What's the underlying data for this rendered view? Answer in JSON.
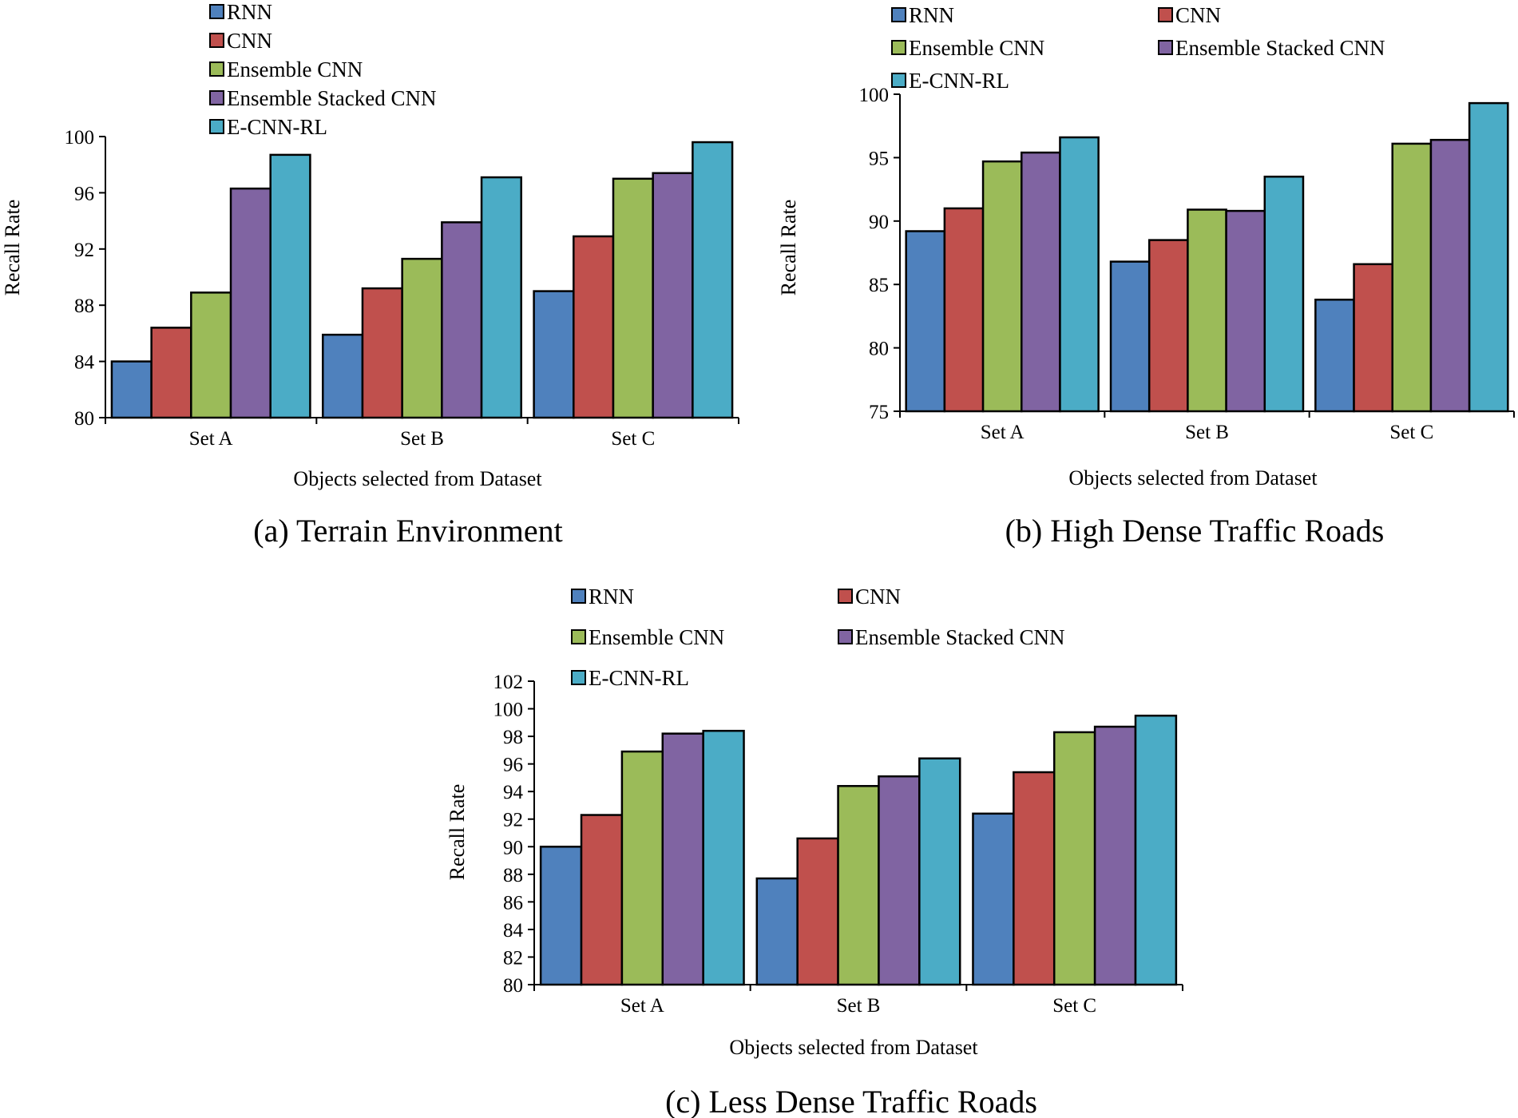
{
  "palette": [
    "#4f81bd",
    "#c0504d",
    "#9bbb59",
    "#8064a2",
    "#4bacc6"
  ],
  "charts": [
    {
      "caption": "(a) Terrain Environment",
      "chart_data": {
        "type": "bar",
        "categories": [
          "Set A",
          "Set B",
          "Set C"
        ],
        "series": [
          {
            "name": "RNN",
            "values": [
              84.0,
              85.9,
              89.0
            ]
          },
          {
            "name": "CNN",
            "values": [
              86.4,
              89.2,
              92.9
            ]
          },
          {
            "name": "Ensemble CNN",
            "values": [
              88.9,
              91.3,
              97.0
            ]
          },
          {
            "name": "Ensemble Stacked CNN",
            "values": [
              96.3,
              93.9,
              97.4
            ]
          },
          {
            "name": "E-CNN-RL",
            "values": [
              98.7,
              97.1,
              99.6
            ]
          }
        ],
        "title": "",
        "xlabel": "Objects selected from Dataset",
        "ylabel": "Recall Rate",
        "ylim": [
          80,
          100
        ],
        "yticks": [
          80,
          84,
          88,
          92,
          96,
          100
        ],
        "ytick_labels": [
          "80",
          "84",
          "88",
          "92",
          "96",
          "100"
        ],
        "grid": false,
        "legend_position": "top-left"
      }
    },
    {
      "caption": "(b) High Dense Traffic Roads",
      "chart_data": {
        "type": "bar",
        "categories": [
          "Set A",
          "Set B",
          "Set C"
        ],
        "series": [
          {
            "name": "RNN",
            "values": [
              89.2,
              86.8,
              83.8
            ]
          },
          {
            "name": "CNN",
            "values": [
              91.0,
              88.5,
              86.6
            ]
          },
          {
            "name": "Ensemble CNN",
            "values": [
              94.7,
              90.9,
              96.1
            ]
          },
          {
            "name": "Ensemble Stacked CNN",
            "values": [
              95.4,
              90.8,
              96.4
            ]
          },
          {
            "name": "E-CNN-RL",
            "values": [
              96.6,
              93.5,
              99.3
            ]
          }
        ],
        "title": "",
        "xlabel": "Objects selected from Dataset",
        "ylabel": "Recall Rate",
        "ylim": [
          75,
          100
        ],
        "yticks": [
          75,
          80,
          85,
          90,
          95,
          100
        ],
        "ytick_labels": [
          "75",
          "80",
          "85",
          "90",
          "95",
          "100"
        ],
        "grid": false,
        "legend_position": "top"
      }
    },
    {
      "caption": "(c) Less Dense Traffic Roads",
      "chart_data": {
        "type": "bar",
        "categories": [
          "Set A",
          "Set B",
          "Set C"
        ],
        "series": [
          {
            "name": "RNN",
            "values": [
              90.0,
              87.7,
              92.4
            ]
          },
          {
            "name": "CNN",
            "values": [
              92.3,
              90.6,
              95.4
            ]
          },
          {
            "name": "Ensemble CNN",
            "values": [
              96.9,
              94.4,
              98.3
            ]
          },
          {
            "name": "Ensemble Stacked CNN",
            "values": [
              98.2,
              95.1,
              98.7
            ]
          },
          {
            "name": "E-CNN-RL",
            "values": [
              98.4,
              96.4,
              99.5
            ]
          }
        ],
        "title": "",
        "xlabel": "Objects selected from Dataset",
        "ylabel": "Recall Rate",
        "ylim": [
          80,
          102
        ],
        "yticks": [
          80,
          82,
          84,
          86,
          88,
          90,
          92,
          94,
          96,
          98,
          100,
          102
        ],
        "ytick_labels": [
          "80",
          "82",
          "84",
          "86",
          "88",
          "90",
          "92",
          "94",
          "96",
          "98",
          "100",
          "102"
        ],
        "grid": false,
        "legend_position": "top"
      }
    }
  ]
}
